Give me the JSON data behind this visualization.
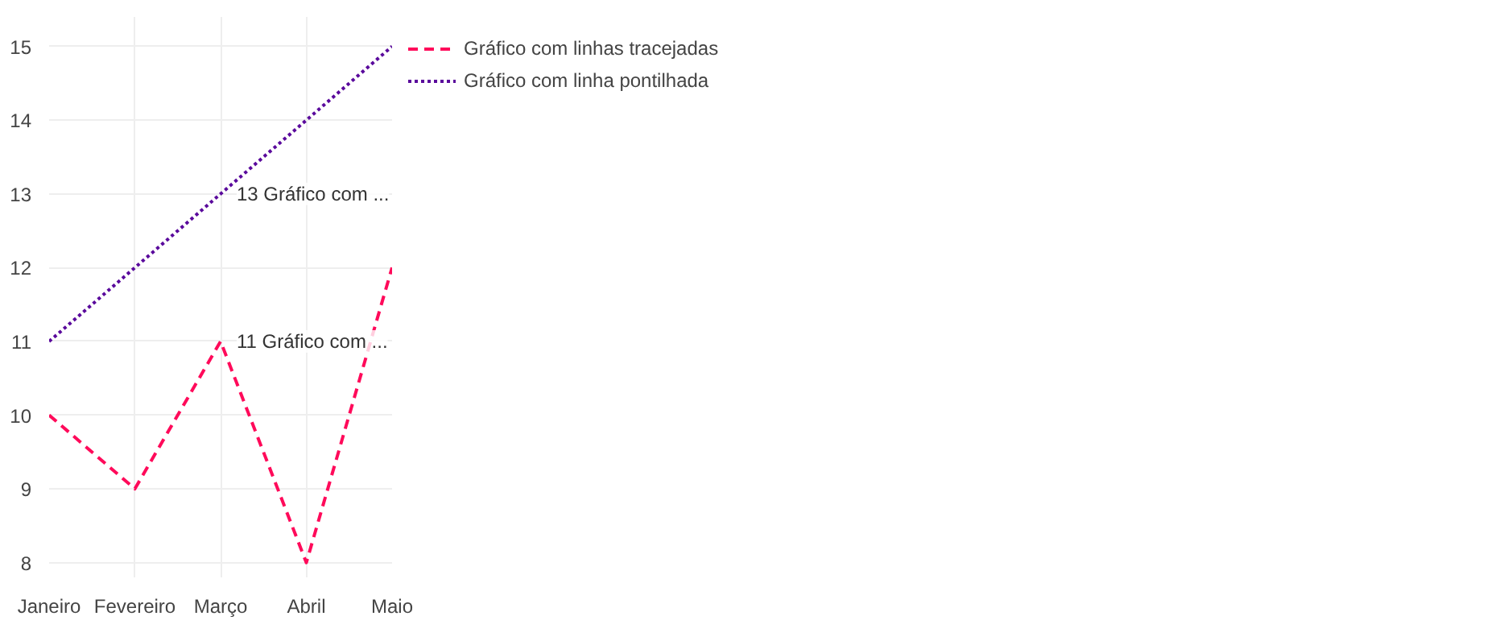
{
  "chart_data": {
    "type": "line",
    "categories": [
      "Janeiro",
      "Fevereiro",
      "Março",
      "Abril",
      "Maio"
    ],
    "series": [
      {
        "name": "Gráfico com linhas tracejadas",
        "color": "#ff0a5a",
        "values": [
          10,
          9,
          11,
          8,
          12
        ],
        "line_style": "dashed"
      },
      {
        "name": "Gráfico com linha pontilhada",
        "color": "#5a0a9c",
        "values": [
          11,
          12,
          13,
          14,
          15
        ],
        "line_style": "dotted"
      }
    ],
    "ylim": [
      7.8,
      15.4
    ],
    "yticks": [
      8,
      9,
      10,
      11,
      12,
      13,
      14,
      15
    ],
    "grid": true,
    "legend": "top right",
    "marker": "none",
    "annotations": [
      {
        "text": "13 Gráfico com ...",
        "x": "Março",
        "y": 13
      },
      {
        "text": "11 Gráfico com ...",
        "x": "Março",
        "y": 11
      }
    ]
  }
}
